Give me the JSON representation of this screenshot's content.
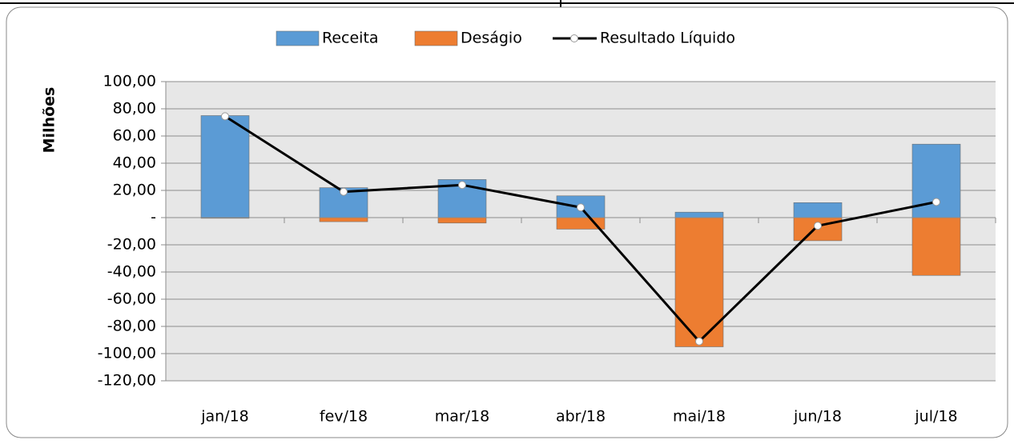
{
  "chart_data": {
    "type": "bar_line",
    "y_label": "Milhões",
    "categories": [
      "jan/18",
      "fev/18",
      "mar/18",
      "abr/18",
      "mai/18",
      "jun/18",
      "jul/18"
    ],
    "series": [
      {
        "name": "Receita",
        "color": "#5b9bd5",
        "type": "bar",
        "values": [
          75,
          22,
          28,
          16,
          4,
          11,
          54
        ]
      },
      {
        "name": "Deságio",
        "color": "#ed7d31",
        "type": "bar",
        "values": [
          -0.5,
          -3,
          -4,
          -8.5,
          -95,
          -17,
          -42.5
        ]
      },
      {
        "name": "Resultado Líquido",
        "color": "#000000",
        "type": "line",
        "values": [
          74.5,
          19,
          24,
          7.5,
          -91,
          -6,
          11.5
        ]
      }
    ],
    "ylim": [
      -120,
      100
    ],
    "yticks": [
      {
        "value": 100,
        "label": "100,00"
      },
      {
        "value": 80,
        "label": "80,00"
      },
      {
        "value": 60,
        "label": "60,00"
      },
      {
        "value": 40,
        "label": "40,00"
      },
      {
        "value": 20,
        "label": "20,00"
      },
      {
        "value": 0,
        "label": "-"
      },
      {
        "value": -20,
        "label": "-20,00"
      },
      {
        "value": -40,
        "label": "-40,00"
      },
      {
        "value": -60,
        "label": "-60,00"
      },
      {
        "value": -80,
        "label": "-80,00"
      },
      {
        "value": -100,
        "label": "-100,00"
      },
      {
        "value": -120,
        "label": "-120,00"
      }
    ],
    "grid": true,
    "legend": "top"
  }
}
